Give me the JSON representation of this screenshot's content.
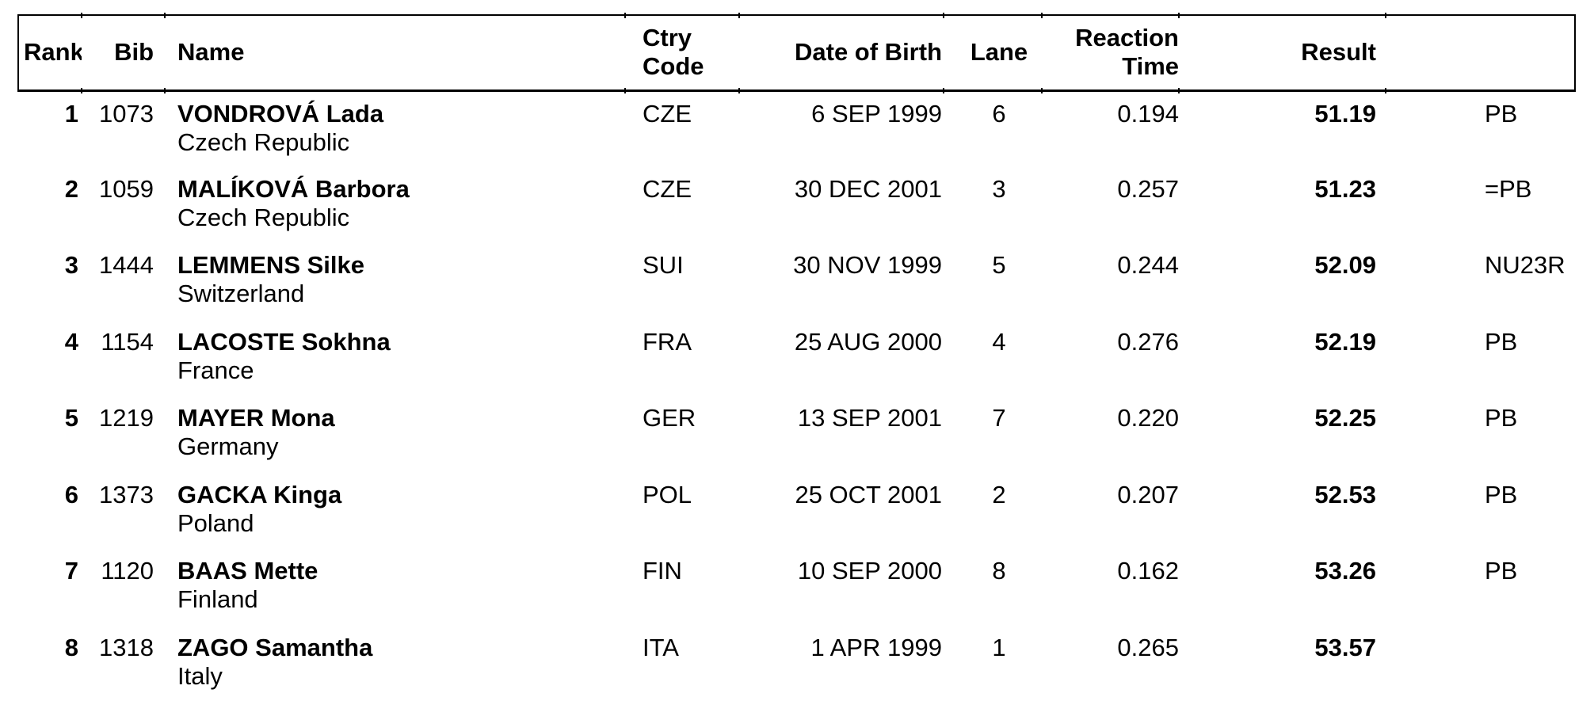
{
  "colors": {
    "text": "#000000",
    "border": "#000000",
    "background": "#ffffff"
  },
  "table": {
    "headers": {
      "rank": "Rank",
      "bib": "Bib",
      "name": "Name",
      "ctry_code": "Ctry\nCode",
      "date_of_birth": "Date of Birth",
      "lane": "Lane",
      "reaction_time": "Reaction\nTime",
      "result": "Result",
      "notes": ""
    },
    "rows": [
      {
        "rank": "1",
        "bib": "1073",
        "name": "VONDROVÁ Lada",
        "country": "Czech Republic",
        "ctry_code": "CZE",
        "date_of_birth": "6 SEP 1999",
        "lane": "6",
        "reaction_time": "0.194",
        "result": "51.19",
        "note": "PB"
      },
      {
        "rank": "2",
        "bib": "1059",
        "name": "MALÍKOVÁ Barbora",
        "country": "Czech Republic",
        "ctry_code": "CZE",
        "date_of_birth": "30 DEC 2001",
        "lane": "3",
        "reaction_time": "0.257",
        "result": "51.23",
        "note": "=PB"
      },
      {
        "rank": "3",
        "bib": "1444",
        "name": "LEMMENS Silke",
        "country": "Switzerland",
        "ctry_code": "SUI",
        "date_of_birth": "30 NOV 1999",
        "lane": "5",
        "reaction_time": "0.244",
        "result": "52.09",
        "note": "NU23R"
      },
      {
        "rank": "4",
        "bib": "1154",
        "name": "LACOSTE Sokhna",
        "country": "France",
        "ctry_code": "FRA",
        "date_of_birth": "25 AUG 2000",
        "lane": "4",
        "reaction_time": "0.276",
        "result": "52.19",
        "note": "PB"
      },
      {
        "rank": "5",
        "bib": "1219",
        "name": "MAYER Mona",
        "country": "Germany",
        "ctry_code": "GER",
        "date_of_birth": "13 SEP 2001",
        "lane": "7",
        "reaction_time": "0.220",
        "result": "52.25",
        "note": "PB"
      },
      {
        "rank": "6",
        "bib": "1373",
        "name": "GACKA Kinga",
        "country": "Poland",
        "ctry_code": "POL",
        "date_of_birth": "25 OCT 2001",
        "lane": "2",
        "reaction_time": "0.207",
        "result": "52.53",
        "note": "PB"
      },
      {
        "rank": "7",
        "bib": "1120",
        "name": "BAAS Mette",
        "country": "Finland",
        "ctry_code": "FIN",
        "date_of_birth": "10 SEP 2000",
        "lane": "8",
        "reaction_time": "0.162",
        "result": "53.26",
        "note": "PB"
      },
      {
        "rank": "8",
        "bib": "1318",
        "name": "ZAGO Samantha",
        "country": "Italy",
        "ctry_code": "ITA",
        "date_of_birth": "1 APR 1999",
        "lane": "1",
        "reaction_time": "0.265",
        "result": "53.57",
        "note": ""
      }
    ]
  }
}
